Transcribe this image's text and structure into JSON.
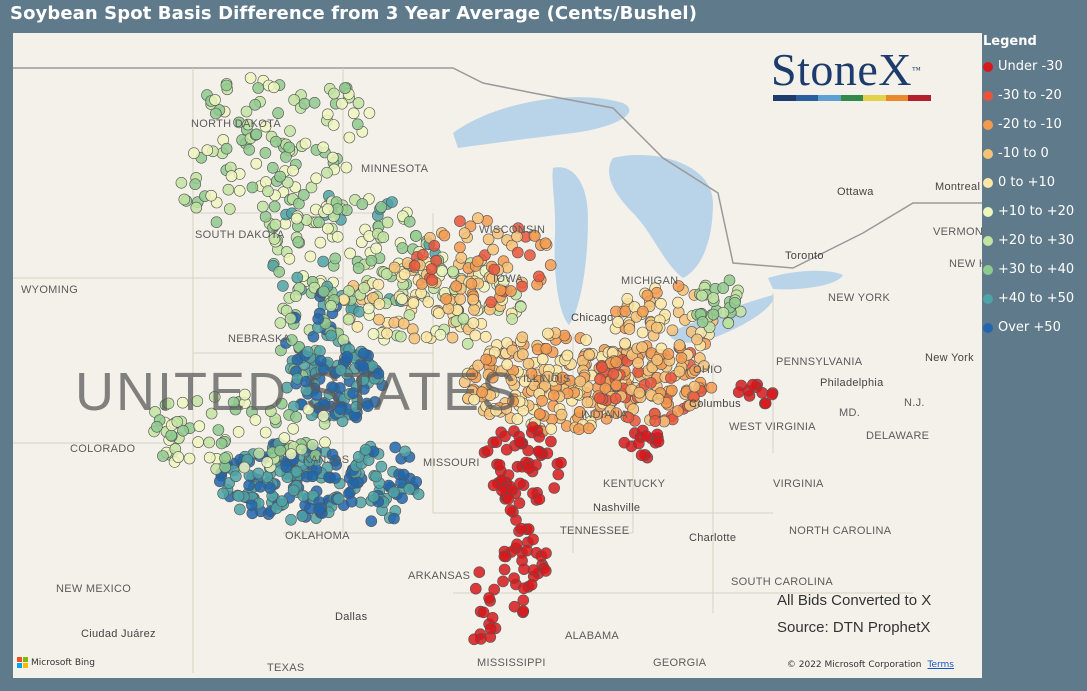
{
  "title": "Soybean Spot Basis Difference from 3 Year Average (Cents/Bushel)",
  "logo": {
    "text": "StoneX",
    "tm": "™",
    "bar_colors": [
      "#1d3b6c",
      "#2a5f9e",
      "#5fa0d4",
      "#2f8a4c",
      "#e2d24a",
      "#e88a2c",
      "#b3202c"
    ]
  },
  "legend": {
    "title": "Legend",
    "items": [
      {
        "label": "Under -30",
        "color": "#d7191c"
      },
      {
        "label": "-30 to -20",
        "color": "#e8553b"
      },
      {
        "label": "-20 to -10",
        "color": "#f39a4f"
      },
      {
        "label": "-10 to 0",
        "color": "#f7c277"
      },
      {
        "label": "0 to +10",
        "color": "#fbe8a6"
      },
      {
        "label": "+10 to +20",
        "color": "#eef6c0"
      },
      {
        "label": "+20 to +30",
        "color": "#c2e4a2"
      },
      {
        "label": "+30 to +40",
        "color": "#8fca8e"
      },
      {
        "label": "+40 to +50",
        "color": "#4fa3a6"
      },
      {
        "label": "Over +50",
        "color": "#2166ac"
      }
    ]
  },
  "map_labels": {
    "states": [
      "NORTH DAKOTA",
      "MINNESOTA",
      "SOUTH DAKOTA",
      "WYOMING",
      "NEBRASKA",
      "COLORADO",
      "IOWA",
      "WISCONSIN",
      "MICHIGAN",
      "ILLINOIS",
      "INDIANA",
      "OHIO",
      "MISSOURI",
      "KANSAS",
      "OKLAHOMA",
      "ARKANSAS",
      "TENNESSEE",
      "KENTUCKY",
      "WEST VIRGINIA",
      "VIRGINIA",
      "NORTH CAROLINA",
      "SOUTH CAROLINA",
      "GEORGIA",
      "ALABAMA",
      "MISSISSIPPI",
      "TEXAS",
      "NEW MEXICO",
      "PENNSYLVANIA",
      "NEW YORK",
      "DELAWARE",
      "MD.",
      "N.J.",
      "VERMONT",
      "NEW HAMP"
    ],
    "cities": [
      "Ottawa",
      "Montreal",
      "Toronto",
      "Chicago",
      "Columbus",
      "Nashville",
      "Charlotte",
      "Dallas",
      "Ciudad Juárez",
      "Philadelphia",
      "New York"
    ],
    "country": "UNITED STATES"
  },
  "annotations": {
    "line1": "All Bids Converted to X",
    "line2": "Source: DTN ProphetX"
  },
  "attribution": {
    "bing": "Microsoft Bing",
    "copyright": "© 2022 Microsoft Corporation",
    "terms": "Terms"
  }
}
